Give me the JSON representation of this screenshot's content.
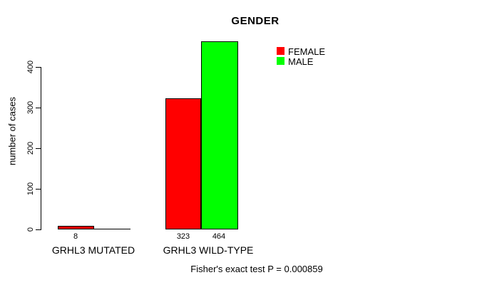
{
  "chart_data": {
    "type": "bar",
    "title": "GENDER",
    "ylabel": "number of cases",
    "xlabel": "",
    "categories": [
      "GRHL3 MUTATED",
      "GRHL3 WILD-TYPE"
    ],
    "series": [
      {
        "name": "FEMALE",
        "color": "#ff0000",
        "values": [
          8,
          323
        ]
      },
      {
        "name": "MALE",
        "color": "#00ff00",
        "values": [
          0,
          464
        ]
      }
    ],
    "bar_value_labels": {
      "mutated_female": "8",
      "wildtype_female": "323",
      "wildtype_male": "464"
    },
    "y_ticks": [
      "0",
      "100",
      "200",
      "300",
      "400"
    ],
    "ylim": [
      0,
      480
    ],
    "grid": false,
    "legend_position": "top-right",
    "annotation": "Fisher's exact test P = 0.000859"
  }
}
